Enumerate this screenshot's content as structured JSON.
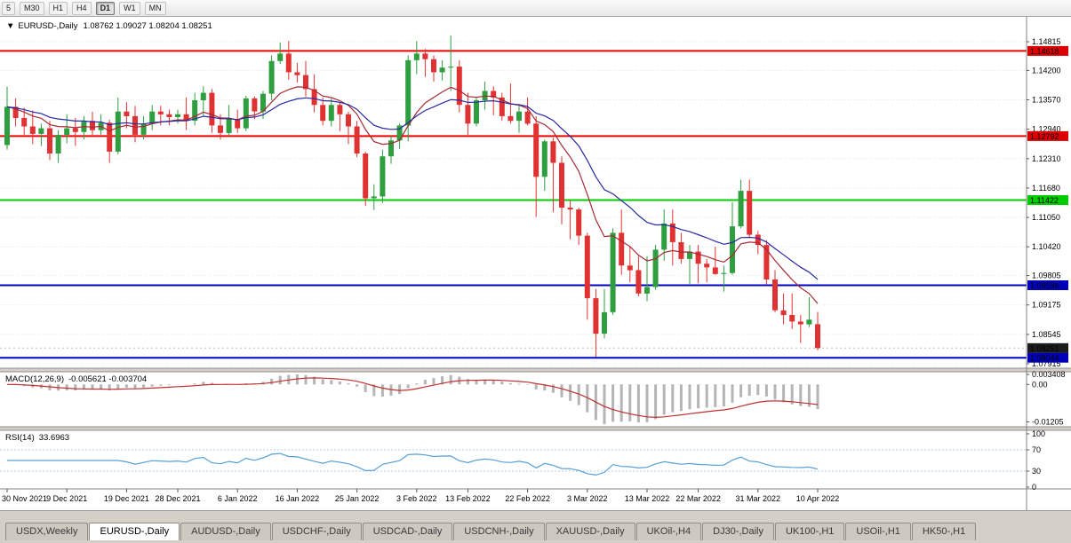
{
  "toolbar": {
    "timeframes": [
      {
        "label": "5",
        "active": false
      },
      {
        "label": "M30",
        "active": false
      },
      {
        "label": "H1",
        "active": false
      },
      {
        "label": "H4",
        "active": false
      },
      {
        "label": "D1",
        "active": true
      },
      {
        "label": "W1",
        "active": false
      },
      {
        "label": "MN",
        "active": false
      }
    ]
  },
  "chart_header": {
    "marker": "▼",
    "symbol": "EURUSD-,Daily",
    "ohlc": "1.08762 1.09027 1.08204 1.08251"
  },
  "price_axis": {
    "ticks": [
      "1.14815",
      "1.14200",
      "1.13570",
      "1.12940",
      "1.12310",
      "1.11680",
      "1.11050",
      "1.10420",
      "1.09805",
      "1.09175",
      "1.08545",
      "1.07915"
    ],
    "tags": [
      {
        "value": "1.14618",
        "price": 1.14618,
        "color": "#dd0000",
        "text": "#ffffff"
      },
      {
        "value": "1.12792",
        "price": 1.12792,
        "color": "#dd0000",
        "text": "#ffffff"
      },
      {
        "value": "1.11422",
        "price": 1.11422,
        "color": "#00cc00",
        "text": "#000000"
      },
      {
        "value": "1.09598",
        "price": 1.09598,
        "color": "#0000bb",
        "text": "#ffffff"
      },
      {
        "value": "1.08251",
        "price": 1.08251,
        "color": "#1c1c1c",
        "text": "#ffffff"
      },
      {
        "value": "1.08044",
        "price": 1.08044,
        "color": "#0000bb",
        "text": "#ffffff"
      }
    ]
  },
  "indicators": {
    "macd": {
      "label": "MACD(12,26,9)",
      "values": "-0.005621 -0.003704",
      "axis": [
        "0.003408",
        "0.00",
        "-0.01205"
      ]
    },
    "rsi": {
      "label": "RSI(14)",
      "values": "33.6963",
      "axis": [
        "100",
        "70",
        "30",
        "0"
      ],
      "levels": [
        70,
        30
      ]
    }
  },
  "x_axis": {
    "labels": [
      "30 Nov 2021",
      "9 Dec 2021",
      "19 Dec 2021",
      "28 Dec 2021",
      "6 Jan 2022",
      "16 Jan 2022",
      "25 Jan 2022",
      "3 Feb 2022",
      "13 Feb 2022",
      "22 Feb 2022",
      "3 Mar 2022",
      "13 Mar 2022",
      "22 Mar 2022",
      "31 Mar 2022",
      "10 Apr 2022"
    ]
  },
  "tabs": [
    {
      "label": "USDX,Weekly",
      "active": false
    },
    {
      "label": "EURUSD-,Daily",
      "active": true
    },
    {
      "label": "AUDUSD-,Daily",
      "active": false
    },
    {
      "label": "USDCHF-,Daily",
      "active": false
    },
    {
      "label": "USDCAD-,Daily",
      "active": false
    },
    {
      "label": "USDCNH-,Daily",
      "active": false
    },
    {
      "label": "XAUUSD-,Daily",
      "active": false
    },
    {
      "label": "UKOil-,H4",
      "active": false
    },
    {
      "label": "DJ30-,Daily",
      "active": false
    },
    {
      "label": "UK100-,H1",
      "active": false
    },
    {
      "label": "USOil-,H1",
      "active": false
    },
    {
      "label": "HK50-,H1",
      "active": false
    }
  ],
  "colors": {
    "background": "#ffffff",
    "bull": "#2e9e3f",
    "bear": "#e03232",
    "grid": "#e5e5e5",
    "ma_fast": "#a62934",
    "ma_slow": "#2929a3",
    "macd_hist": "#b5b5b5",
    "macd_signal": "#c03030",
    "rsi": "#55a0d8",
    "rsi_level": "#b8cce4",
    "panel_border": "#808080",
    "bid_line": "#bbbbbb"
  },
  "chart_data": {
    "type": "candlestick",
    "symbol": "EURUSD-",
    "timeframe": "Daily",
    "ohlc_current": {
      "open": 1.08762,
      "high": 1.09027,
      "low": 1.08204,
      "close": 1.08251
    },
    "ylim": [
      1.07915,
      1.14815
    ],
    "levels": [
      {
        "price": 1.14618,
        "color": "#ee0000"
      },
      {
        "price": 1.12792,
        "color": "#ee0000"
      },
      {
        "price": 1.11422,
        "color": "#00cc00"
      },
      {
        "price": 1.09598,
        "color": "#0000c0"
      },
      {
        "price": 1.08044,
        "color": "#0000c0"
      }
    ],
    "moving_averages": [
      {
        "period": 10,
        "method": "ema",
        "color": "#a62934"
      },
      {
        "period": 20,
        "method": "ema",
        "color": "#2929a3"
      }
    ],
    "sub_charts": [
      {
        "type": "macd",
        "params": [
          12,
          26,
          9
        ],
        "current": [
          -0.005621,
          -0.003704
        ]
      },
      {
        "type": "rsi",
        "period": 14,
        "current": 33.6963,
        "levels": [
          70,
          30
        ]
      }
    ],
    "candles": [
      [
        1.126,
        1.1385,
        1.125,
        1.1342
      ],
      [
        1.1342,
        1.136,
        1.13,
        1.1318
      ],
      [
        1.1318,
        1.134,
        1.1282,
        1.13
      ],
      [
        1.13,
        1.1334,
        1.1262,
        1.1284
      ],
      [
        1.1284,
        1.1306,
        1.1258,
        1.1296
      ],
      [
        1.1296,
        1.1312,
        1.1228,
        1.1242
      ],
      [
        1.1242,
        1.1292,
        1.1222,
        1.1282
      ],
      [
        1.1282,
        1.1326,
        1.1264,
        1.1296
      ],
      [
        1.1296,
        1.1318,
        1.1258,
        1.1288
      ],
      [
        1.1288,
        1.1322,
        1.1272,
        1.1312
      ],
      [
        1.1312,
        1.1332,
        1.1278,
        1.1292
      ],
      [
        1.1292,
        1.1326,
        1.1282,
        1.1308
      ],
      [
        1.1308,
        1.1314,
        1.1222,
        1.1246
      ],
      [
        1.1246,
        1.1362,
        1.124,
        1.1332
      ],
      [
        1.1332,
        1.1352,
        1.1296,
        1.1322
      ],
      [
        1.1322,
        1.1344,
        1.1266,
        1.1282
      ],
      [
        1.1282,
        1.1322,
        1.1272,
        1.1306
      ],
      [
        1.1306,
        1.1346,
        1.1292,
        1.1332
      ],
      [
        1.1332,
        1.1344,
        1.1302,
        1.1326
      ],
      [
        1.1326,
        1.1336,
        1.1302,
        1.132
      ],
      [
        1.132,
        1.1336,
        1.1306,
        1.1326
      ],
      [
        1.1326,
        1.1362,
        1.1292,
        1.1312
      ],
      [
        1.1312,
        1.1372,
        1.1302,
        1.1356
      ],
      [
        1.1356,
        1.1386,
        1.1322,
        1.1372
      ],
      [
        1.1372,
        1.138,
        1.1286,
        1.1302
      ],
      [
        1.1302,
        1.1326,
        1.1272,
        1.1286
      ],
      [
        1.1286,
        1.1346,
        1.128,
        1.1316
      ],
      [
        1.1316,
        1.1336,
        1.1286,
        1.1296
      ],
      [
        1.1296,
        1.1366,
        1.129,
        1.136
      ],
      [
        1.136,
        1.1364,
        1.1316,
        1.1332
      ],
      [
        1.1332,
        1.1376,
        1.1316,
        1.137
      ],
      [
        1.137,
        1.1452,
        1.1356,
        1.144
      ],
      [
        1.144,
        1.148,
        1.1434,
        1.1456
      ],
      [
        1.1456,
        1.1483,
        1.14,
        1.1416
      ],
      [
        1.1416,
        1.1436,
        1.1394,
        1.141
      ],
      [
        1.141,
        1.144,
        1.1364,
        1.138
      ],
      [
        1.138,
        1.1412,
        1.133,
        1.1346
      ],
      [
        1.1346,
        1.1362,
        1.1302,
        1.1312
      ],
      [
        1.1312,
        1.136,
        1.13,
        1.1346
      ],
      [
        1.1346,
        1.1352,
        1.129,
        1.1326
      ],
      [
        1.1326,
        1.1332,
        1.1262,
        1.13
      ],
      [
        1.13,
        1.1312,
        1.1234,
        1.1242
      ],
      [
        1.1242,
        1.1246,
        1.113,
        1.1146
      ],
      [
        1.1146,
        1.1176,
        1.1121,
        1.115
      ],
      [
        1.115,
        1.125,
        1.1136,
        1.1236
      ],
      [
        1.1236,
        1.128,
        1.122,
        1.127
      ],
      [
        1.127,
        1.1306,
        1.1252,
        1.1302
      ],
      [
        1.1302,
        1.1452,
        1.1268,
        1.1442
      ],
      [
        1.1442,
        1.1483,
        1.1412,
        1.1456
      ],
      [
        1.1456,
        1.1466,
        1.1406,
        1.1444
      ],
      [
        1.1444,
        1.1452,
        1.1396,
        1.1416
      ],
      [
        1.1416,
        1.1442,
        1.1398,
        1.1426
      ],
      [
        1.1426,
        1.1495,
        1.1376,
        1.1428
      ],
      [
        1.1428,
        1.1442,
        1.133,
        1.1346
      ],
      [
        1.1346,
        1.1372,
        1.1282,
        1.1306
      ],
      [
        1.1306,
        1.1362,
        1.13,
        1.1356
      ],
      [
        1.1356,
        1.1396,
        1.1336,
        1.1376
      ],
      [
        1.1376,
        1.1386,
        1.1324,
        1.1362
      ],
      [
        1.1362,
        1.1372,
        1.1312,
        1.1322
      ],
      [
        1.1322,
        1.1392,
        1.1306,
        1.1312
      ],
      [
        1.1312,
        1.1346,
        1.1286,
        1.1332
      ],
      [
        1.1332,
        1.1362,
        1.1302,
        1.1306
      ],
      [
        1.1306,
        1.1322,
        1.1106,
        1.1192
      ],
      [
        1.1192,
        1.1272,
        1.1162,
        1.1268
      ],
      [
        1.1268,
        1.1276,
        1.1116,
        1.1222
      ],
      [
        1.1222,
        1.1236,
        1.109,
        1.1126
      ],
      [
        1.1126,
        1.1142,
        1.1058,
        1.1122
      ],
      [
        1.1122,
        1.1126,
        1.1046,
        1.1066
      ],
      [
        1.1066,
        1.1072,
        1.0886,
        1.0932
      ],
      [
        1.0932,
        1.0952,
        1.0806,
        1.0856
      ],
      [
        1.0856,
        1.0952,
        1.0846,
        1.0902
      ],
      [
        1.0902,
        1.1082,
        1.0896,
        1.1072
      ],
      [
        1.1072,
        1.1122,
        1.0982,
        1.1002
      ],
      [
        1.1002,
        1.1042,
        1.0966,
        1.0992
      ],
      [
        1.0992,
        1.1022,
        1.0936,
        1.0942
      ],
      [
        1.0942,
        1.1022,
        1.0926,
        1.0956
      ],
      [
        1.0956,
        1.1046,
        1.095,
        1.1036
      ],
      [
        1.1036,
        1.1122,
        1.1012,
        1.1092
      ],
      [
        1.1092,
        1.1122,
        1.1002,
        1.1052
      ],
      [
        1.1052,
        1.1072,
        1.1006,
        1.1016
      ],
      [
        1.1016,
        1.1046,
        1.0962,
        1.1032
      ],
      [
        1.1032,
        1.1046,
        1.0964,
        1.1006
      ],
      [
        1.1006,
        1.1016,
        1.0966,
        1.0998
      ],
      [
        1.0998,
        1.1042,
        1.0982,
        1.0984
      ],
      [
        1.0984,
        1.1002,
        1.0946,
        1.0986
      ],
      [
        1.0986,
        1.1138,
        1.0982,
        1.1086
      ],
      [
        1.1086,
        1.1186,
        1.1082,
        1.1162
      ],
      [
        1.1162,
        1.1186,
        1.1062,
        1.1068
      ],
      [
        1.1068,
        1.1076,
        1.1026,
        1.1046
      ],
      [
        1.1046,
        1.1056,
        1.0962,
        1.0972
      ],
      [
        1.0972,
        1.0992,
        1.0902,
        1.0906
      ],
      [
        1.0906,
        1.0942,
        1.0876,
        1.0896
      ],
      [
        1.0896,
        1.0942,
        1.0866,
        1.0882
      ],
      [
        1.0882,
        1.0896,
        1.0836,
        1.0876
      ],
      [
        1.0876,
        1.0934,
        1.087,
        1.0886
      ],
      [
        1.08762,
        1.09027,
        1.08204,
        1.08251
      ]
    ]
  }
}
